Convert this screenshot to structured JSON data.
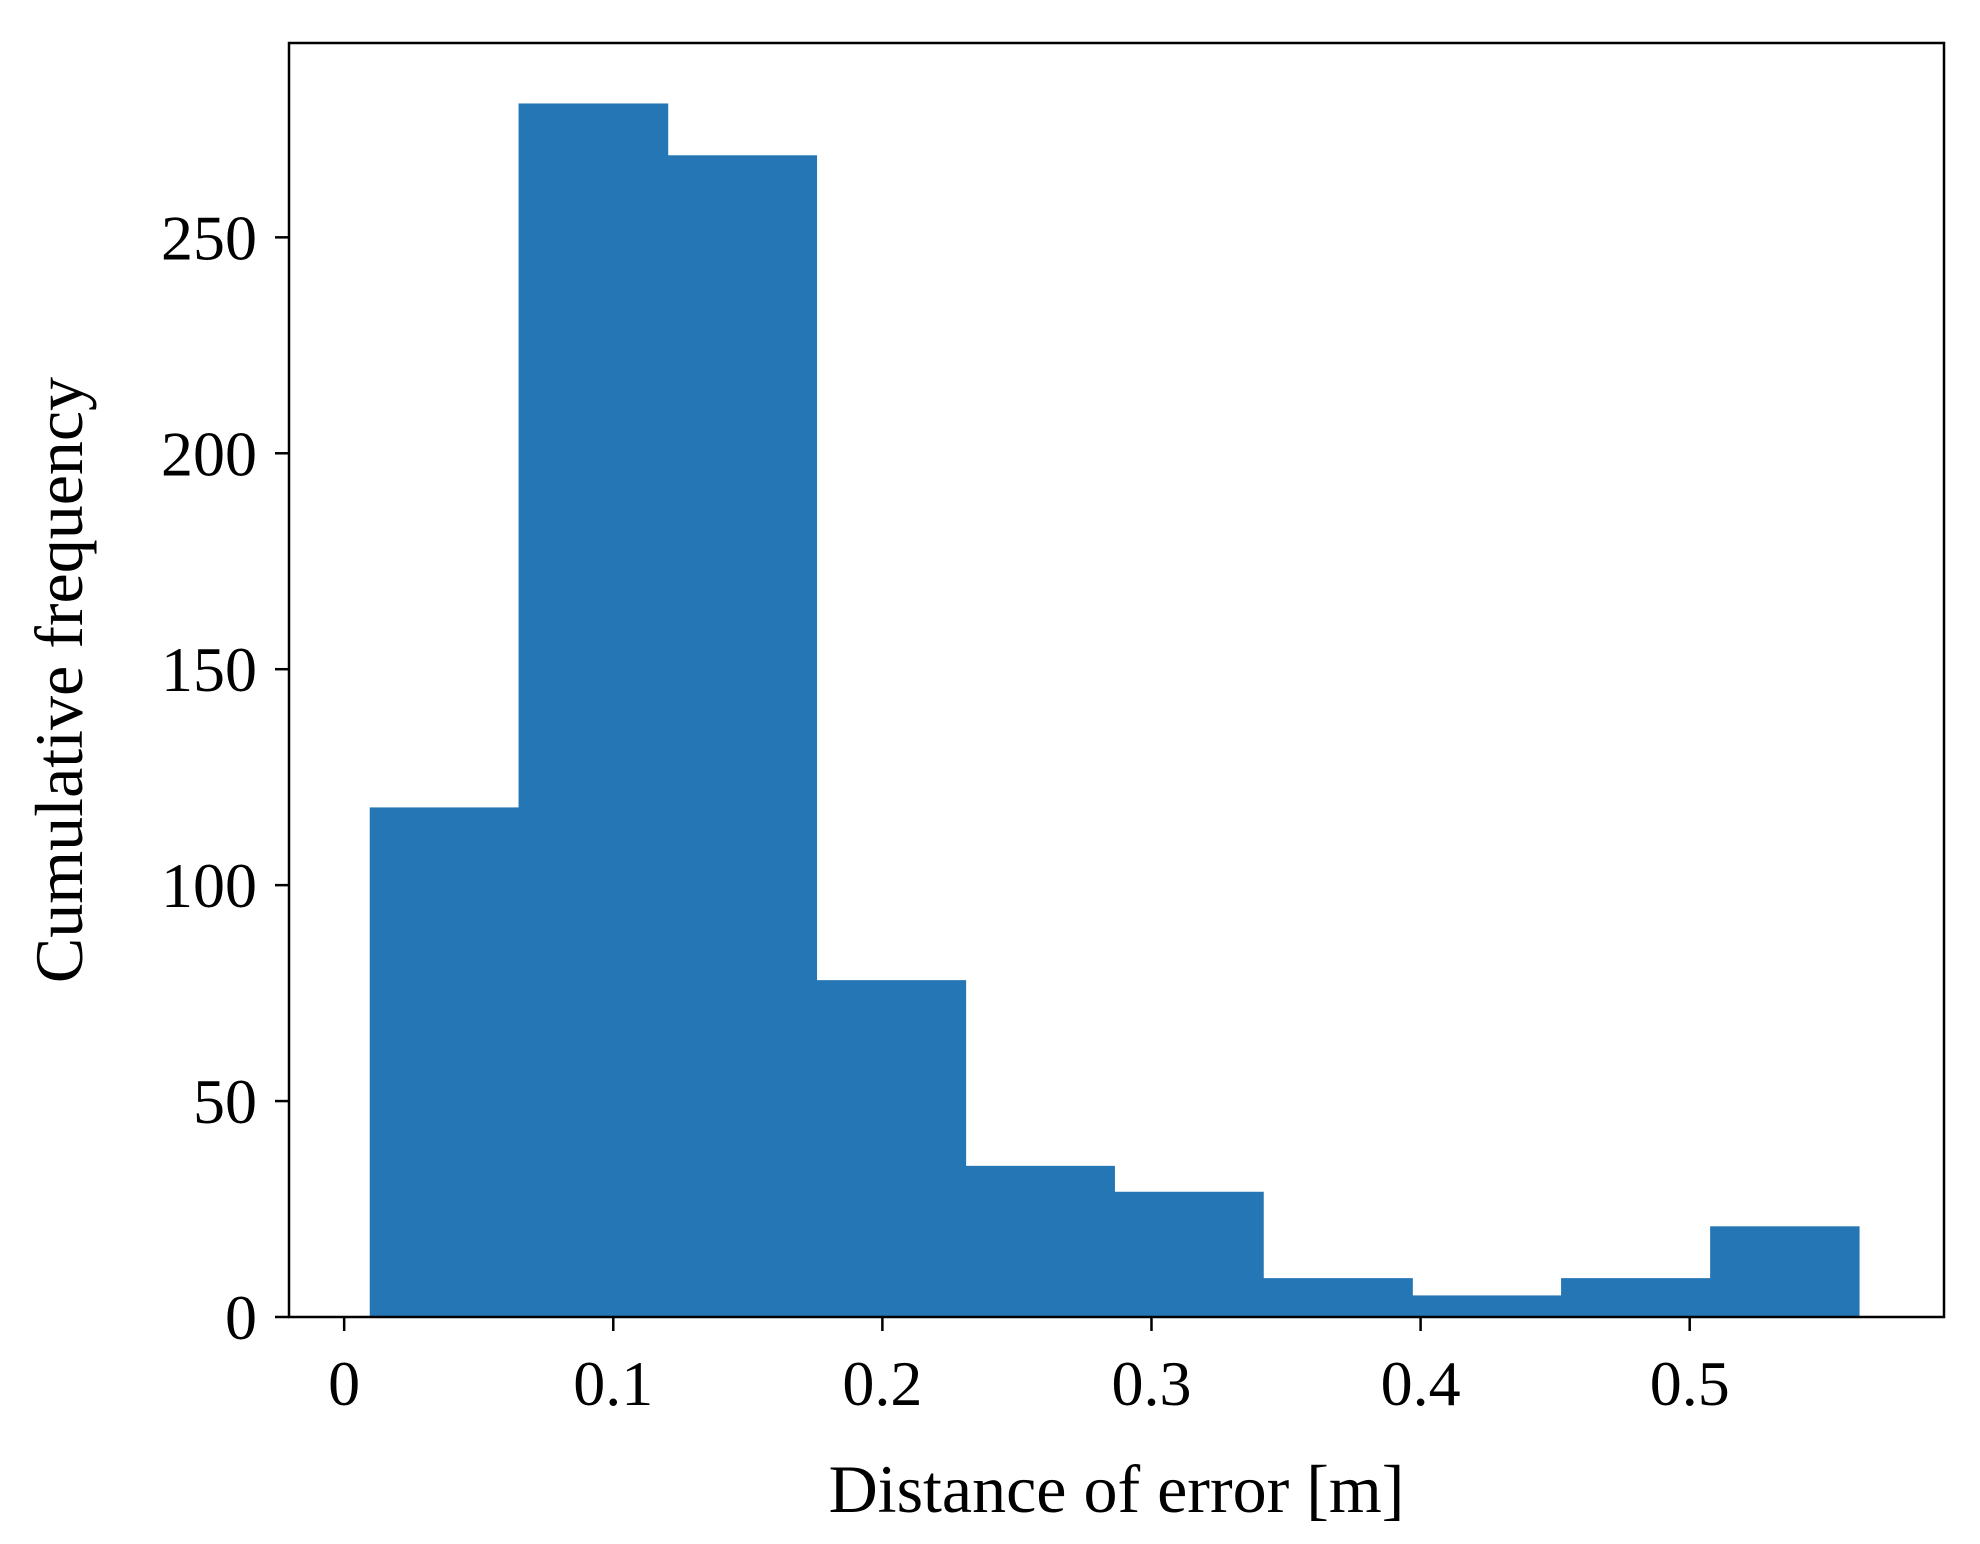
{
  "chart_data": {
    "type": "bar",
    "title": "",
    "xlabel": "Distance of error [m]",
    "ylabel": "Cumulative frequency",
    "xlim": [
      -0.0205,
      0.5945
    ],
    "ylim": [
      0,
      295
    ],
    "grid": false,
    "bar_color": "#2477b4",
    "bins": [
      {
        "x0": 0.0095,
        "x1": 0.0648,
        "value": 118
      },
      {
        "x0": 0.0648,
        "x1": 0.1202,
        "value": 281
      },
      {
        "x0": 0.1202,
        "x1": 0.1755,
        "value": 269
      },
      {
        "x0": 0.1755,
        "x1": 0.2309,
        "value": 78
      },
      {
        "x0": 0.2309,
        "x1": 0.2862,
        "value": 35
      },
      {
        "x0": 0.2862,
        "x1": 0.3415,
        "value": 29
      },
      {
        "x0": 0.3415,
        "x1": 0.3969,
        "value": 9
      },
      {
        "x0": 0.3969,
        "x1": 0.4522,
        "value": 5
      },
      {
        "x0": 0.4522,
        "x1": 0.5076,
        "value": 9
      },
      {
        "x0": 0.5076,
        "x1": 0.5629,
        "value": 21
      }
    ],
    "x_ticks": [
      {
        "value": 0.0,
        "label": "0"
      },
      {
        "value": 0.1,
        "label": "0.1"
      },
      {
        "value": 0.2,
        "label": "0.2"
      },
      {
        "value": 0.3,
        "label": "0.3"
      },
      {
        "value": 0.4,
        "label": "0.4"
      },
      {
        "value": 0.5,
        "label": "0.5"
      }
    ],
    "y_ticks": [
      {
        "value": 0,
        "label": "0"
      },
      {
        "value": 50,
        "label": "50"
      },
      {
        "value": 100,
        "label": "100"
      },
      {
        "value": 150,
        "label": "150"
      },
      {
        "value": 200,
        "label": "200"
      },
      {
        "value": 250,
        "label": "250"
      }
    ]
  }
}
